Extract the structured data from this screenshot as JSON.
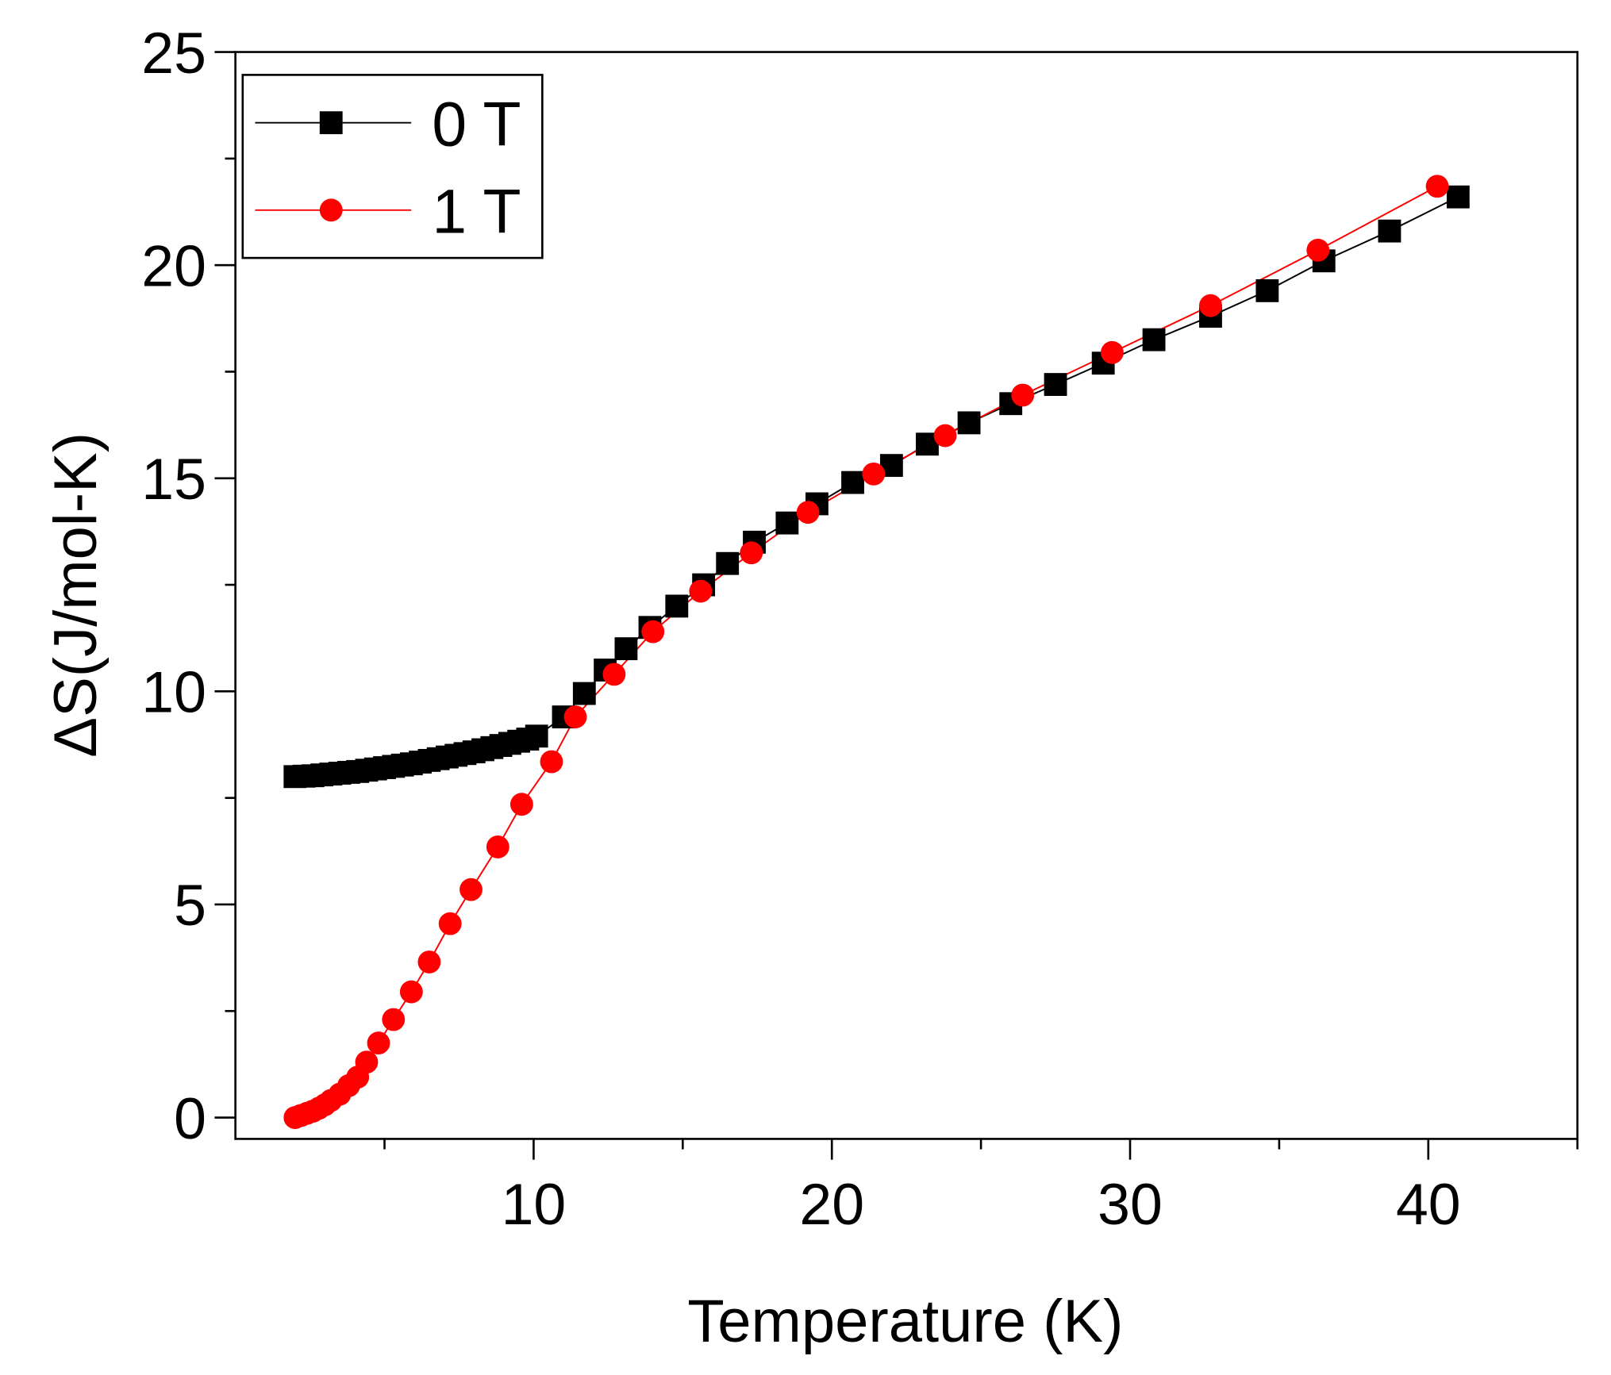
{
  "chart_data": {
    "type": "line",
    "xlabel": "Temperature (K)",
    "ylabel": "ΔS(J/mol-K)",
    "xlim": [
      0,
      45
    ],
    "xticks": [
      10,
      20,
      30,
      40
    ],
    "ylim": [
      -0.5,
      25
    ],
    "yticks": [
      0,
      5,
      10,
      15,
      20,
      25
    ],
    "legend": "upper left",
    "series": [
      {
        "name": "0 T",
        "color": "#000000",
        "marker": "square",
        "x": [
          2.0,
          2.3,
          2.6,
          2.9,
          3.2,
          3.5,
          3.8,
          4.1,
          4.4,
          4.7,
          5.0,
          5.3,
          5.6,
          5.9,
          6.2,
          6.5,
          6.8,
          7.1,
          7.4,
          7.7,
          8.0,
          8.3,
          8.6,
          8.9,
          9.2,
          9.5,
          9.8,
          10.1,
          11.0,
          11.7,
          12.4,
          13.1,
          13.9,
          14.8,
          15.7,
          16.5,
          17.4,
          18.5,
          19.5,
          20.7,
          22.0,
          23.2,
          24.6,
          26.0,
          27.5,
          29.1,
          30.8,
          32.7,
          34.6,
          36.5,
          38.7,
          41.0
        ],
        "values": [
          8.0,
          8.01,
          8.02,
          8.04,
          8.06,
          8.08,
          8.1,
          8.12,
          8.15,
          8.18,
          8.21,
          8.24,
          8.27,
          8.3,
          8.34,
          8.38,
          8.42,
          8.46,
          8.5,
          8.54,
          8.58,
          8.63,
          8.68,
          8.73,
          8.78,
          8.83,
          8.88,
          8.95,
          9.4,
          9.95,
          10.5,
          11.0,
          11.5,
          12.0,
          12.5,
          13.0,
          13.5,
          13.95,
          14.4,
          14.9,
          15.3,
          15.8,
          16.3,
          16.75,
          17.2,
          17.7,
          18.25,
          18.8,
          19.4,
          20.1,
          20.8,
          21.6
        ]
      },
      {
        "name": "1 T",
        "color": "#ff0000",
        "marker": "circle",
        "x": [
          2.0,
          2.2,
          2.4,
          2.6,
          2.8,
          3.0,
          3.2,
          3.5,
          3.8,
          4.1,
          4.4,
          4.8,
          5.3,
          5.9,
          6.5,
          7.2,
          7.9,
          8.8,
          9.6,
          10.6,
          11.4,
          12.7,
          14.0,
          15.6,
          17.3,
          19.2,
          21.4,
          23.8,
          26.4,
          29.4,
          32.7,
          36.3,
          40.3
        ],
        "values": [
          0.0,
          0.05,
          0.1,
          0.15,
          0.22,
          0.3,
          0.4,
          0.55,
          0.75,
          0.95,
          1.3,
          1.75,
          2.3,
          2.95,
          3.65,
          4.55,
          5.35,
          6.35,
          7.35,
          8.35,
          9.4,
          10.4,
          11.4,
          12.35,
          13.25,
          14.2,
          15.1,
          16.0,
          16.95,
          17.95,
          19.05,
          20.35,
          21.85
        ]
      }
    ]
  }
}
